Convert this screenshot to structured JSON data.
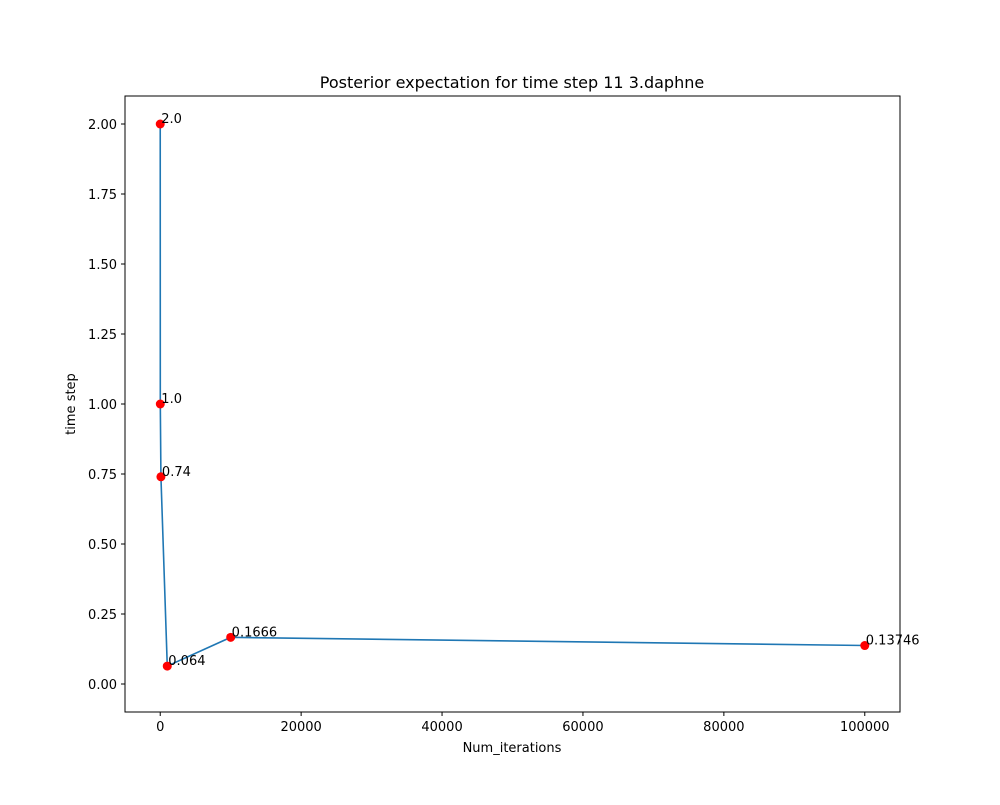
{
  "chart_data": {
    "type": "line",
    "title": "Posterior expectation for time step 11 3.daphne",
    "xlabel": "Num_iterations",
    "ylabel": "time step",
    "xlim": [
      -5000,
      105000
    ],
    "ylim": [
      -0.1,
      2.1
    ],
    "x_ticks": [
      0,
      20000,
      40000,
      60000,
      80000,
      100000
    ],
    "x_tick_labels": [
      "0",
      "20000",
      "40000",
      "60000",
      "80000",
      "100000"
    ],
    "y_ticks": [
      0.0,
      0.25,
      0.5,
      0.75,
      1.0,
      1.25,
      1.5,
      1.75,
      2.0
    ],
    "y_tick_labels": [
      "0.00",
      "0.25",
      "0.50",
      "0.75",
      "1.00",
      "1.25",
      "1.50",
      "1.75",
      "2.00"
    ],
    "grid": false,
    "line_color": "#1f77b4",
    "marker_color": "#ff0000",
    "series": [
      {
        "x": [
          1,
          10,
          100,
          1000,
          10000,
          100000
        ],
        "y": [
          2.0,
          1.0,
          0.74,
          0.064,
          0.1666,
          0.13746
        ],
        "labels": [
          "2.0",
          "1.0",
          "0.74",
          "0.064",
          "0.1666",
          "0.13746"
        ]
      }
    ]
  }
}
